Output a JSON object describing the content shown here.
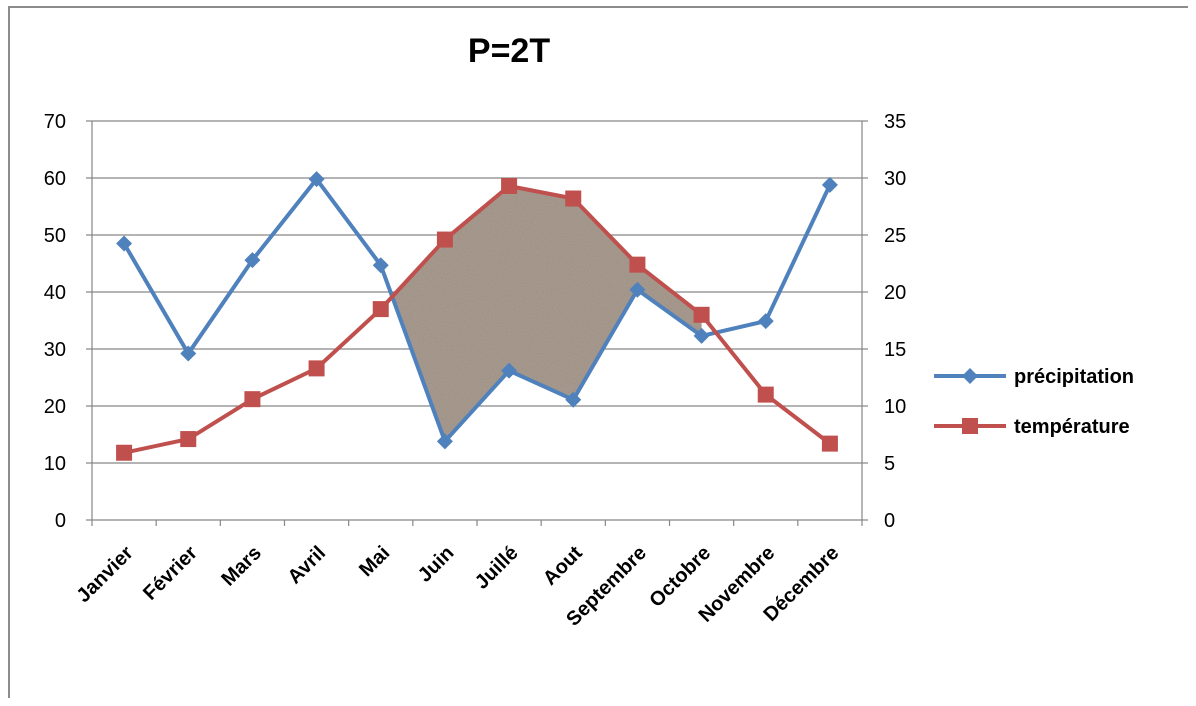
{
  "chart_data": {
    "type": "line",
    "title": "P=2T",
    "categories": [
      "Janvier",
      "Février",
      "Mars",
      "Avril",
      "Mai",
      "Juin",
      "Juillé",
      "Aout",
      "Septembre",
      "Octobre",
      "Novembre",
      "Décembre"
    ],
    "series": [
      {
        "name": "précipitation",
        "axis": "left",
        "color": "#4f81bd",
        "marker": "diamond",
        "values": [
          48.5,
          29.2,
          45.6,
          59.8,
          44.7,
          13.8,
          26.2,
          21.1,
          40.4,
          32.3,
          34.9,
          58.8
        ]
      },
      {
        "name": "température",
        "axis": "right",
        "color": "#c0504d",
        "marker": "square",
        "values": [
          5.9,
          7.1,
          10.6,
          13.3,
          18.5,
          24.6,
          29.3,
          28.2,
          22.4,
          18.0,
          11.0,
          6.7
        ]
      }
    ],
    "ylim_left": [
      0,
      70
    ],
    "yticks_left": [
      0,
      10,
      20,
      30,
      40,
      50,
      60,
      70
    ],
    "ylim_right": [
      0,
      35
    ],
    "yticks_right": [
      0,
      5,
      10,
      15,
      20,
      25,
      30,
      35
    ],
    "grid": true,
    "legend_position": "right",
    "shaded_region": {
      "between": [
        "précipitation",
        "température"
      ],
      "from_category": "Mai",
      "to_category": "Octobre",
      "fill_color": "#a89a8e"
    }
  }
}
